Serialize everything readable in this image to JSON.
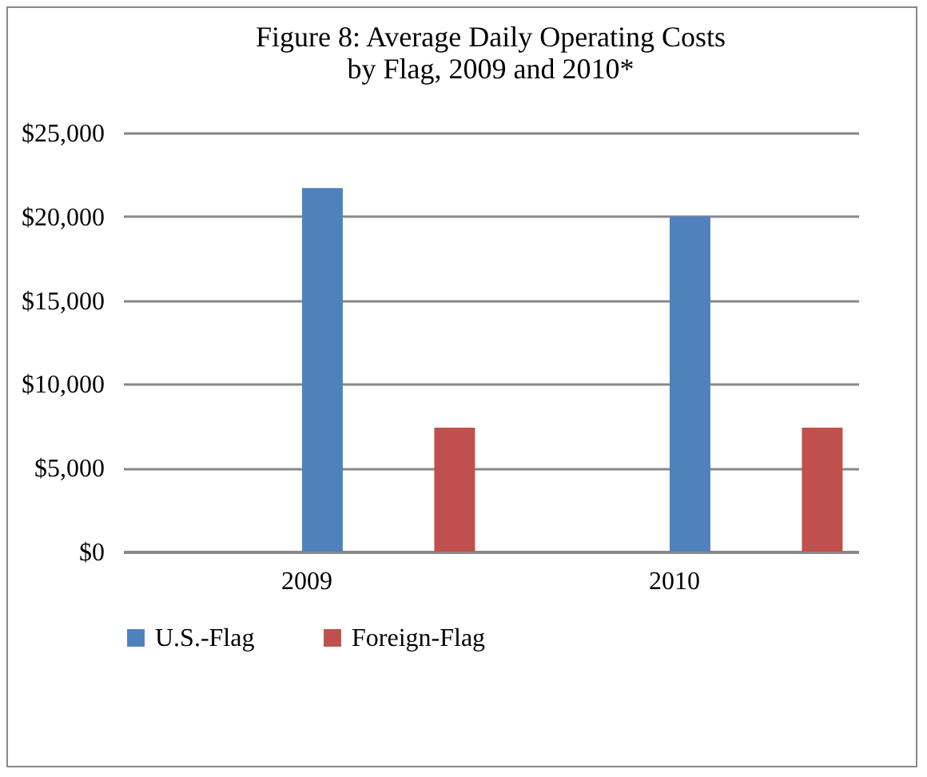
{
  "chart_data": {
    "type": "bar",
    "title": [
      "Figure 8: Average Daily Operating Costs",
      "by Flag, 2009 and 2010*"
    ],
    "categories": [
      "2009",
      "2010"
    ],
    "series": [
      {
        "name": "U.S.-Flag",
        "color": "#4f81bd",
        "values": [
          21700,
          20000
        ]
      },
      {
        "name": "Foreign-Flag",
        "color": "#c0504d",
        "values": [
          7400,
          7400
        ]
      }
    ],
    "ylim": [
      0,
      25000
    ],
    "yticks": [
      {
        "value": 0,
        "label": "$0"
      },
      {
        "value": 5000,
        "label": "$5,000"
      },
      {
        "value": 10000,
        "label": "$10,000"
      },
      {
        "value": 15000,
        "label": "$15,000"
      },
      {
        "value": 20000,
        "label": "$20,000"
      },
      {
        "value": 25000,
        "label": "$25,000"
      }
    ],
    "grid": "y",
    "legend": "bottom"
  }
}
